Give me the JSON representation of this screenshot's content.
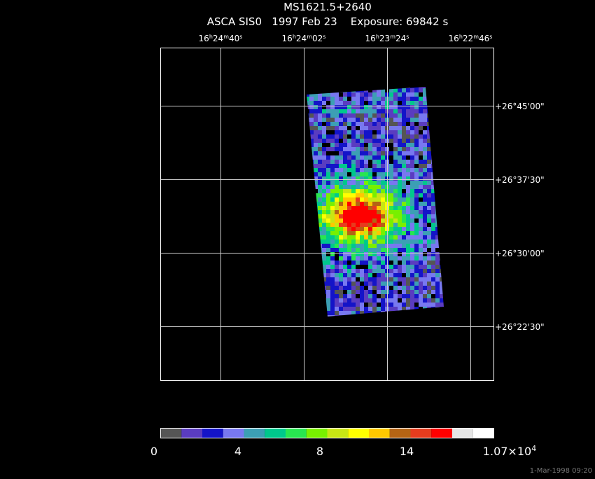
{
  "header": {
    "title": "MS1621.5+2640",
    "subtitle": "ASCA SIS0   1997 Feb 23    Exposure: 69842 s"
  },
  "ra_labels": [
    [
      "16",
      "h",
      "24",
      "m",
      "40",
      "s"
    ],
    [
      "16",
      "h",
      "24",
      "m",
      "02",
      "s"
    ],
    [
      "16",
      "h",
      "23",
      "m",
      "24",
      "s"
    ],
    [
      "16",
      "h",
      "22",
      "m",
      "46",
      "s"
    ]
  ],
  "dec_labels": [
    "+26°45'00\"",
    "+26°37'30\"",
    "+26°30'00\"",
    "+26°22'30\""
  ],
  "colorbar": {
    "colors": [
      "#555555",
      "#5a3cc0",
      "#1414c8",
      "#7878f0",
      "#3c9fb4",
      "#00c88c",
      "#28e650",
      "#78f000",
      "#c8e614",
      "#ffff00",
      "#ffc800",
      "#b46414",
      "#e63c1e",
      "#ff0000",
      "#e6e6e6",
      "#ffffff"
    ],
    "labels": [
      "0",
      "4",
      "8",
      "14",
      [
        "1.07×10",
        "4"
      ]
    ]
  },
  "timestamp": "1-Mar-1998 09:20"
}
